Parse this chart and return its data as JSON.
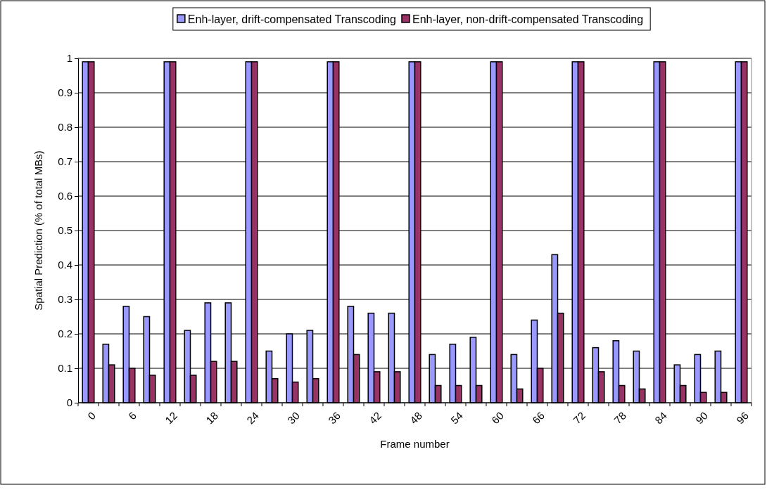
{
  "chart_data": {
    "type": "bar",
    "xlabel": "Frame number",
    "ylabel": "Spatial Prediction (% of total MBs)",
    "categories": [
      "0",
      null,
      "6",
      null,
      "12",
      null,
      "18",
      null,
      "24",
      null,
      "30",
      null,
      "36",
      null,
      "42",
      null,
      "48",
      null,
      "54",
      null,
      "60",
      null,
      "66",
      null,
      "72",
      null,
      "78",
      null,
      "84",
      null,
      "90",
      null,
      "96"
    ],
    "series": [
      {
        "name": "Enh-layer, drift-compensated Transcoding",
        "color": "#9999ff",
        "values": [
          0.99,
          0.17,
          0.28,
          0.25,
          0.99,
          0.21,
          0.29,
          0.29,
          0.99,
          0.15,
          0.2,
          0.21,
          0.99,
          0.28,
          0.26,
          0.26,
          0.99,
          0.14,
          0.17,
          0.19,
          0.99,
          0.14,
          0.24,
          0.43,
          0.99,
          0.16,
          0.18,
          0.15,
          0.99,
          0.11,
          0.14,
          0.15,
          0.99
        ]
      },
      {
        "name": "Enh-layer, non-drift-compensated Transcoding",
        "color": "#993366",
        "values": [
          0.99,
          0.11,
          0.1,
          0.08,
          0.99,
          0.08,
          0.12,
          0.12,
          0.99,
          0.07,
          0.06,
          0.07,
          0.99,
          0.14,
          0.09,
          0.09,
          0.99,
          0.05,
          0.05,
          0.05,
          0.99,
          0.04,
          0.1,
          0.26,
          0.99,
          0.09,
          0.05,
          0.04,
          0.99,
          0.05,
          0.03,
          0.03,
          0.99
        ]
      }
    ],
    "ylim": [
      0,
      1
    ],
    "yticks": [
      0,
      0.1,
      0.2,
      0.3,
      0.4,
      0.5,
      0.6,
      0.7,
      0.8,
      0.9,
      1
    ],
    "grid": "y",
    "legend": "top"
  }
}
